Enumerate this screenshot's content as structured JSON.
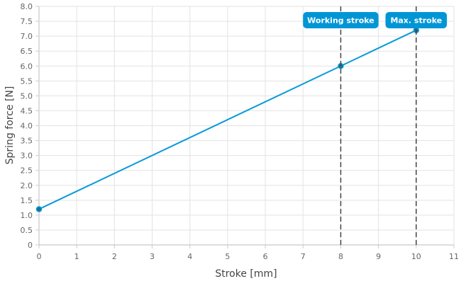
{
  "chart_data": {
    "type": "line",
    "xlabel": "Stroke [mm]",
    "ylabel": "Spring force [N]",
    "xlim": [
      0,
      11
    ],
    "ylim": [
      0,
      8
    ],
    "xticks": [
      "0",
      "1",
      "2",
      "3",
      "4",
      "5",
      "6",
      "7",
      "8",
      "9",
      "10",
      "11"
    ],
    "yticks": [
      "0",
      "0.5",
      "1.0",
      "1.5",
      "2.0",
      "2.5",
      "3.0",
      "3.5",
      "4.0",
      "4.5",
      "5.0",
      "5.5",
      "6.0",
      "6.5",
      "7.0",
      "7.5",
      "8.0"
    ],
    "grid": true,
    "series": [
      {
        "name": "Spring force",
        "x": [
          0,
          8,
          10
        ],
        "y": [
          1.2,
          6.0,
          7.2
        ],
        "color": "#0a9ad9"
      }
    ],
    "annotations": [
      {
        "label": "Working stroke",
        "x": 8
      },
      {
        "label": "Max. stroke",
        "x": 10
      }
    ],
    "annotation_color": "#0096d6"
  }
}
